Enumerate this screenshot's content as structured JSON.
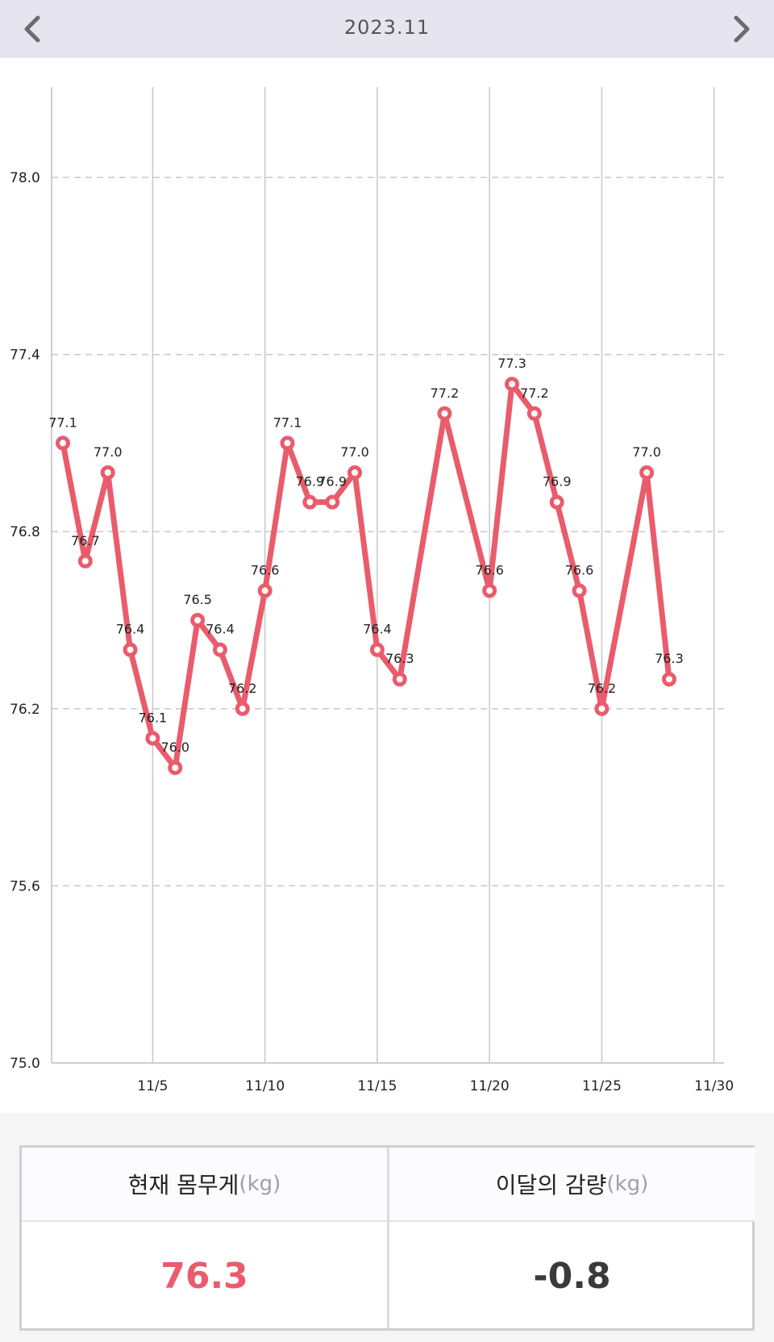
{
  "header": {
    "title": "2023.11",
    "prev_icon": "chevron-left-icon",
    "next_icon": "chevron-right-icon"
  },
  "colors": {
    "header_bg": "#e6e4ef",
    "line": "#e95c6c",
    "grid": "#c8c8c8"
  },
  "chart_data": {
    "type": "line",
    "title": "",
    "xlabel": "",
    "ylabel": "",
    "x_ticks": [
      "11/5",
      "11/10",
      "11/15",
      "11/20",
      "11/25",
      "11/30"
    ],
    "x_tick_days": [
      5,
      10,
      15,
      20,
      25,
      30
    ],
    "y_ticks": [
      "75.0",
      "75.6",
      "76.2",
      "76.8",
      "77.4",
      "78.0"
    ],
    "ylim": [
      75.0,
      78.3
    ],
    "xlim": [
      0.5,
      30.5
    ],
    "grid": true,
    "days": [
      1,
      2,
      3,
      4,
      5,
      6,
      7,
      8,
      9,
      10,
      11,
      12,
      13,
      14,
      15,
      16,
      18,
      20,
      21,
      22,
      23,
      24,
      25,
      27,
      28
    ],
    "values": [
      77.1,
      76.7,
      77.0,
      76.4,
      76.1,
      76.0,
      76.5,
      76.4,
      76.2,
      76.6,
      77.1,
      76.9,
      76.9,
      77.0,
      76.4,
      76.3,
      77.2,
      76.6,
      77.3,
      77.2,
      76.9,
      76.6,
      76.2,
      77.0,
      76.3
    ],
    "labels": [
      "77.1",
      "76.7",
      "77.0",
      "76.4",
      "76.1",
      "76.0",
      "76.5",
      "76.4",
      "76.2",
      "76.6",
      "77.1",
      "76.9",
      "76.9",
      "77.0",
      "76.4",
      "76.3",
      "77.2",
      "76.6",
      "77.3",
      "77.2",
      "76.9",
      "76.6",
      "76.2",
      "77.0",
      "76.3"
    ]
  },
  "summary": {
    "current_label": "현재 몸무게",
    "change_label": "이달의 감량",
    "unit": "(kg)",
    "current_value": "76.3",
    "change_value": "-0.8"
  }
}
